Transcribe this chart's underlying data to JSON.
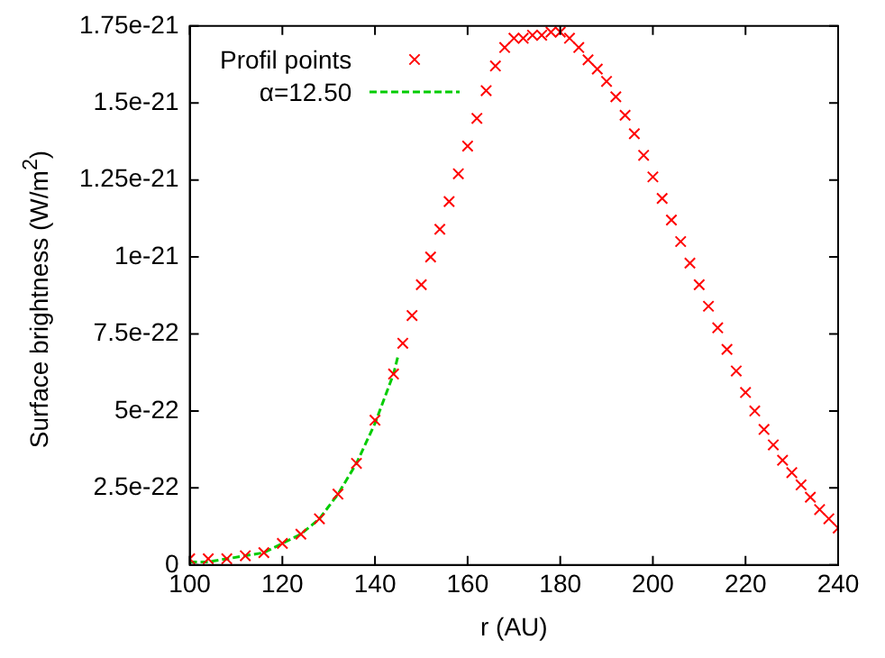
{
  "chart_data": {
    "type": "scatter",
    "xlabel": "r (AU)",
    "ylabel": "Surface brightness (W/m$^{2}$)",
    "xlim": [
      100,
      240
    ],
    "xticks": [
      100,
      120,
      140,
      160,
      180,
      200,
      220,
      240
    ],
    "ylim": [
      0,
      1.75e-21
    ],
    "yticks": [
      {
        "value": 0,
        "label": "0"
      },
      {
        "value": 2.5e-22,
        "label": "2.5e-22"
      },
      {
        "value": 5e-22,
        "label": "5e-22"
      },
      {
        "value": 7.5e-22,
        "label": "7.5e-22"
      },
      {
        "value": 1e-21,
        "label": "1e-21"
      },
      {
        "value": 1.25e-21,
        "label": "1.25e-21"
      },
      {
        "value": 1.5e-21,
        "label": "1.5e-21"
      },
      {
        "value": 1.75e-21,
        "label": "1.75e-21"
      }
    ],
    "grid": false,
    "legend": "top left",
    "series": [
      {
        "name": "Profil points",
        "marker": "cross",
        "color": "#ff0000",
        "x": [
          100,
          104,
          108,
          112,
          116,
          120,
          124,
          128,
          132,
          136,
          140,
          144,
          146,
          148,
          150,
          152,
          154,
          156,
          158,
          160,
          162,
          164,
          166,
          168,
          170,
          172,
          174,
          176,
          178,
          180,
          182,
          184,
          186,
          188,
          190,
          192,
          194,
          196,
          198,
          200,
          202,
          204,
          206,
          208,
          210,
          212,
          214,
          216,
          218,
          220,
          222,
          224,
          226,
          228,
          230,
          232,
          234,
          236,
          238,
          240
        ],
        "values": [
          2e-23,
          2e-23,
          2e-23,
          3e-23,
          4e-23,
          7e-23,
          1e-22,
          1.5e-22,
          2.3e-22,
          3.3e-22,
          4.7e-22,
          6.2e-22,
          7.2e-22,
          8.1e-22,
          9.1e-22,
          1e-21,
          1.09e-21,
          1.18e-21,
          1.27e-21,
          1.36e-21,
          1.45e-21,
          1.54e-21,
          1.62e-21,
          1.68e-21,
          1.71e-21,
          1.71e-21,
          1.72e-21,
          1.72e-21,
          1.73e-21,
          1.73e-21,
          1.71e-21,
          1.68e-21,
          1.64e-21,
          1.61e-21,
          1.57e-21,
          1.52e-21,
          1.46e-21,
          1.4e-21,
          1.33e-21,
          1.26e-21,
          1.19e-21,
          1.12e-21,
          1.05e-21,
          9.8e-22,
          9.1e-22,
          8.4e-22,
          7.7e-22,
          7e-22,
          6.3e-22,
          5.6e-22,
          5e-22,
          4.4e-22,
          3.9e-22,
          3.4e-22,
          3e-22,
          2.6e-22,
          2.2e-22,
          1.8e-22,
          1.5e-22,
          1.2e-22
        ]
      },
      {
        "name": "α=12.50",
        "type": "line",
        "marker": "none",
        "line_style": "dashed",
        "color": "#00cc00",
        "x": [
          100,
          104,
          108,
          112,
          116,
          120,
          124,
          128,
          132,
          136,
          140,
          144,
          145
        ],
        "values": [
          1e-23,
          1e-23,
          2e-23,
          3e-23,
          4e-23,
          7e-23,
          1e-22,
          1.5e-22,
          2.3e-22,
          3.3e-22,
          4.6e-22,
          6.2e-22,
          6.8e-22
        ]
      }
    ]
  }
}
